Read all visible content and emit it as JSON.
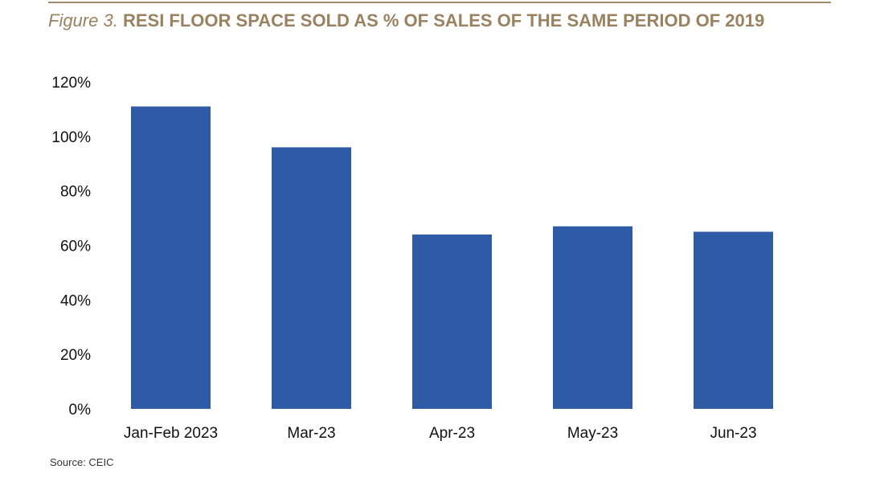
{
  "title_prefix": "Figure 3.",
  "title_main": "RESI FLOOR SPACE SOLD AS % OF SALES OF THE SAME PERIOD OF 2019",
  "source": "Source: CEIC",
  "colors": {
    "bar": "#2f5aa6",
    "title": "#9a8260",
    "rule": "#a08c6c"
  },
  "chart_data": {
    "type": "bar",
    "categories": [
      "Jan-Feb 2023",
      "Mar-23",
      "Apr-23",
      "May-23",
      "Jun-23"
    ],
    "values": [
      111,
      96,
      64,
      67,
      65
    ],
    "unit": "%",
    "ylim": [
      0,
      120
    ],
    "yticks": [
      0,
      20,
      40,
      60,
      80,
      100,
      120
    ],
    "ytick_labels": [
      "0%",
      "20%",
      "40%",
      "60%",
      "80%",
      "100%",
      "120%"
    ],
    "grid": false,
    "legend": "none"
  }
}
